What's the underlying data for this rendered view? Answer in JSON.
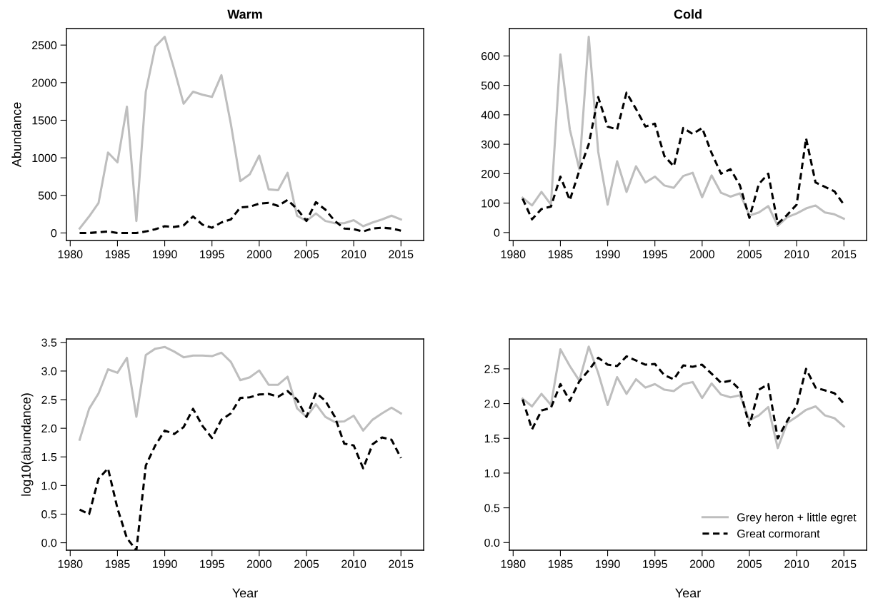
{
  "chart_data": [
    {
      "type": "line",
      "title": "Warm",
      "ylabel": "Abundance",
      "x": [
        1981,
        1982,
        1983,
        1984,
        1985,
        1986,
        1987,
        1988,
        1989,
        1990,
        1991,
        1992,
        1993,
        1994,
        1995,
        1996,
        1997,
        1998,
        1999,
        2000,
        2001,
        2002,
        2003,
        2004,
        2005,
        2006,
        2007,
        2008,
        2009,
        2010,
        2011,
        2012,
        2013,
        2014,
        2015
      ],
      "xlim": [
        1979.6,
        2017.4
      ],
      "xticks": [
        1980,
        1985,
        1990,
        1995,
        2000,
        2005,
        2010,
        2015
      ],
      "ylim": [
        -100,
        2720
      ],
      "yticks": [
        0,
        500,
        1000,
        1500,
        2000,
        2500
      ],
      "grid": false,
      "legend": false,
      "series": [
        {
          "color": "#bebebe",
          "line_style": "solid",
          "values": [
            60,
            220,
            400,
            1070,
            940,
            1680,
            160,
            1880,
            2480,
            2610,
            2180,
            1720,
            1880,
            1840,
            1810,
            2100,
            1450,
            690,
            780,
            1030,
            580,
            570,
            800,
            230,
            160,
            260,
            160,
            130,
            130,
            170,
            90,
            140,
            180,
            230,
            180
          ]
        },
        {
          "color": "#000000",
          "line_style": "dashed",
          "values": [
            0,
            0,
            10,
            20,
            0,
            0,
            0,
            20,
            50,
            90,
            80,
            100,
            220,
            110,
            70,
            140,
            180,
            340,
            350,
            390,
            400,
            360,
            440,
            320,
            160,
            410,
            310,
            160,
            60,
            50,
            20,
            60,
            70,
            60,
            30
          ]
        }
      ]
    },
    {
      "type": "line",
      "title": "Cold",
      "x": [
        1981,
        1982,
        1983,
        1984,
        1985,
        1986,
        1987,
        1988,
        1989,
        1990,
        1991,
        1992,
        1993,
        1994,
        1995,
        1996,
        1997,
        1998,
        1999,
        2000,
        2001,
        2002,
        2003,
        2004,
        2005,
        2006,
        2007,
        2008,
        2009,
        2010,
        2011,
        2012,
        2013,
        2014,
        2015
      ],
      "xlim": [
        1979.6,
        2017.4
      ],
      "xticks": [
        1980,
        1985,
        1990,
        1995,
        2000,
        2005,
        2010,
        2015
      ],
      "ylim": [
        -27,
        693
      ],
      "yticks": [
        0,
        100,
        200,
        300,
        400,
        500,
        600
      ],
      "grid": false,
      "legend": false,
      "series": [
        {
          "color": "#bebebe",
          "line_style": "solid",
          "values": [
            118,
            92,
            138,
            95,
            605,
            350,
            215,
            665,
            275,
            95,
            242,
            138,
            225,
            170,
            190,
            160,
            152,
            192,
            203,
            120,
            194,
            135,
            122,
            133,
            58,
            68,
            90,
            23,
            52,
            65,
            82,
            92,
            68,
            62,
            47
          ]
        },
        {
          "color": "#000000",
          "line_style": "dashed",
          "values": [
            115,
            45,
            80,
            88,
            190,
            110,
            210,
            300,
            460,
            360,
            350,
            475,
            420,
            360,
            370,
            260,
            225,
            355,
            335,
            355,
            270,
            200,
            215,
            160,
            50,
            165,
            200,
            30,
            60,
            95,
            320,
            170,
            155,
            140,
            95
          ]
        }
      ]
    },
    {
      "type": "line",
      "xlabel": "Year",
      "ylabel": "log10(abundance)",
      "x": [
        1981,
        1982,
        1983,
        1984,
        1985,
        1986,
        1987,
        1988,
        1989,
        1990,
        1991,
        1992,
        1993,
        1994,
        1995,
        1996,
        1997,
        1998,
        1999,
        2000,
        2001,
        2002,
        2003,
        2004,
        2005,
        2006,
        2007,
        2008,
        2009,
        2010,
        2011,
        2012,
        2013,
        2014,
        2015
      ],
      "xlim": [
        1979.6,
        2017.4
      ],
      "xticks": [
        1980,
        1985,
        1990,
        1995,
        2000,
        2005,
        2010,
        2015
      ],
      "ylim": [
        -0.13,
        3.56
      ],
      "yticks": [
        {
          "value": 0,
          "label": "0.0"
        },
        {
          "value": 0.5,
          "label": "0.5"
        },
        {
          "value": 1,
          "label": "1.0"
        },
        {
          "value": 1.5,
          "label": "1.5"
        },
        {
          "value": 2,
          "label": "2.0"
        },
        {
          "value": 2.5,
          "label": "2.5"
        },
        {
          "value": 3,
          "label": "3.0"
        },
        {
          "value": 3.5,
          "label": "3.5"
        }
      ],
      "grid": false,
      "legend": false,
      "series": [
        {
          "color": "#bebebe",
          "line_style": "solid",
          "values": [
            1.8,
            2.34,
            2.61,
            3.03,
            2.97,
            3.23,
            2.2,
            3.28,
            3.39,
            3.42,
            3.34,
            3.24,
            3.27,
            3.27,
            3.26,
            3.32,
            3.16,
            2.84,
            2.89,
            3.01,
            2.76,
            2.76,
            2.9,
            2.35,
            2.2,
            2.42,
            2.2,
            2.11,
            2.12,
            2.22,
            1.96,
            2.15,
            2.26,
            2.36,
            2.26
          ]
        },
        {
          "color": "#000000",
          "line_style": "dashed",
          "values": [
            0.58,
            0.5,
            1.12,
            1.3,
            0.6,
            0.08,
            -0.13,
            1.35,
            1.7,
            1.96,
            1.9,
            2.02,
            2.34,
            2.04,
            1.83,
            2.15,
            2.26,
            2.53,
            2.54,
            2.59,
            2.6,
            2.55,
            2.65,
            2.5,
            2.2,
            2.62,
            2.48,
            2.2,
            1.73,
            1.7,
            1.3,
            1.72,
            1.84,
            1.8,
            1.48
          ]
        }
      ]
    },
    {
      "type": "line",
      "xlabel": "Year",
      "x": [
        1981,
        1982,
        1983,
        1984,
        1985,
        1986,
        1987,
        1988,
        1989,
        1990,
        1991,
        1992,
        1993,
        1994,
        1995,
        1996,
        1997,
        1998,
        1999,
        2000,
        2001,
        2002,
        2003,
        2004,
        2005,
        2006,
        2007,
        2008,
        2009,
        2010,
        2011,
        2012,
        2013,
        2014,
        2015
      ],
      "xlim": [
        1979.6,
        2017.4
      ],
      "xticks": [
        1980,
        1985,
        1990,
        1995,
        2000,
        2005,
        2010,
        2015
      ],
      "ylim": [
        -0.11,
        2.93
      ],
      "yticks": [
        {
          "value": 0,
          "label": "0.0"
        },
        {
          "value": 0.5,
          "label": "0.5"
        },
        {
          "value": 1,
          "label": "1.0"
        },
        {
          "value": 1.5,
          "label": "1.5"
        },
        {
          "value": 2,
          "label": "2.0"
        },
        {
          "value": 2.5,
          "label": "2.5"
        }
      ],
      "grid": false,
      "legend": "bottom right",
      "series": [
        {
          "name": "Grey heron + little egret",
          "color": "#bebebe",
          "line_style": "solid",
          "values": [
            2.07,
            1.96,
            2.14,
            1.98,
            2.78,
            2.54,
            2.33,
            2.82,
            2.44,
            1.98,
            2.38,
            2.14,
            2.35,
            2.23,
            2.28,
            2.2,
            2.18,
            2.28,
            2.31,
            2.08,
            2.29,
            2.13,
            2.09,
            2.12,
            1.76,
            1.83,
            1.95,
            1.36,
            1.72,
            1.81,
            1.91,
            1.96,
            1.83,
            1.79,
            1.67
          ]
        },
        {
          "name": "Great cormorant",
          "color": "#000000",
          "line_style": "dashed",
          "values": [
            2.06,
            1.63,
            1.9,
            1.94,
            2.28,
            2.04,
            2.32,
            2.48,
            2.66,
            2.56,
            2.54,
            2.68,
            2.62,
            2.56,
            2.57,
            2.41,
            2.35,
            2.55,
            2.53,
            2.56,
            2.43,
            2.3,
            2.33,
            2.2,
            1.68,
            2.2,
            2.28,
            1.5,
            1.75,
            1.97,
            2.5,
            2.23,
            2.19,
            2.15,
            2.0
          ]
        }
      ]
    }
  ]
}
